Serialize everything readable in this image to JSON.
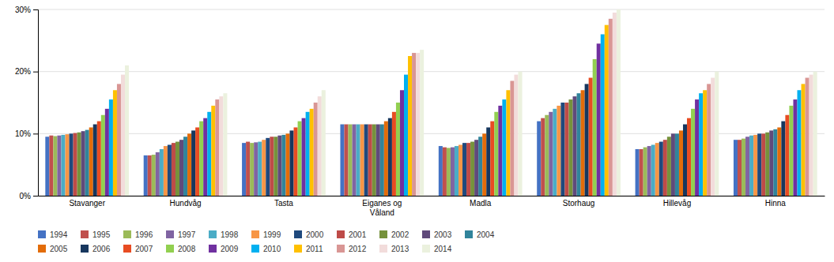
{
  "chart_data": {
    "type": "bar",
    "categories": [
      "Stavanger",
      "Hundvåg",
      "Tasta",
      "Eiganes og\nVåland",
      "Madla",
      "Storhaug",
      "Hillevåg",
      "Hinna"
    ],
    "series": [
      {
        "name": "1994",
        "color": "#4472C4",
        "values": [
          9.5,
          6.5,
          8.5,
          11.5,
          8.0,
          12.0,
          7.5,
          9.0
        ]
      },
      {
        "name": "1995",
        "color": "#C0504D",
        "values": [
          9.7,
          6.5,
          8.7,
          11.5,
          7.8,
          12.5,
          7.5,
          9.0
        ]
      },
      {
        "name": "1996",
        "color": "#9BBB59",
        "values": [
          9.6,
          6.6,
          8.5,
          11.5,
          7.7,
          13.0,
          7.8,
          9.2
        ]
      },
      {
        "name": "1997",
        "color": "#8064A2",
        "values": [
          9.7,
          7.0,
          8.6,
          11.5,
          7.8,
          13.5,
          8.0,
          9.5
        ]
      },
      {
        "name": "1998",
        "color": "#4BACC6",
        "values": [
          9.8,
          7.5,
          8.7,
          11.5,
          8.0,
          14.0,
          8.2,
          9.7
        ]
      },
      {
        "name": "1999",
        "color": "#F79646",
        "values": [
          9.9,
          8.0,
          9.0,
          11.5,
          8.2,
          14.5,
          8.5,
          9.8
        ]
      },
      {
        "name": "2000",
        "color": "#1F497D",
        "values": [
          10.0,
          8.2,
          9.3,
          11.5,
          8.5,
          15.0,
          8.7,
          10.0
        ]
      },
      {
        "name": "2001",
        "color": "#BE4B48",
        "values": [
          10.1,
          8.5,
          9.5,
          11.5,
          8.5,
          15.0,
          9.0,
          10.0
        ]
      },
      {
        "name": "2002",
        "color": "#76923C",
        "values": [
          10.2,
          8.7,
          9.5,
          11.5,
          8.7,
          15.5,
          9.5,
          10.2
        ]
      },
      {
        "name": "2003",
        "color": "#604A7B",
        "values": [
          10.4,
          9.0,
          9.7,
          11.5,
          9.0,
          16.0,
          10.0,
          10.5
        ]
      },
      {
        "name": "2004",
        "color": "#31849B",
        "values": [
          10.6,
          9.5,
          9.8,
          11.5,
          9.5,
          16.5,
          10.0,
          10.7
        ]
      },
      {
        "name": "2005",
        "color": "#E36C09",
        "values": [
          11.0,
          10.0,
          10.0,
          12.0,
          10.0,
          17.0,
          10.5,
          11.0
        ]
      },
      {
        "name": "2006",
        "color": "#17375E",
        "values": [
          11.5,
          10.5,
          10.5,
          12.5,
          11.0,
          18.0,
          11.5,
          12.0
        ]
      },
      {
        "name": "2007",
        "color": "#E84C22",
        "values": [
          12.0,
          11.0,
          11.0,
          13.5,
          12.0,
          19.0,
          12.5,
          13.0
        ]
      },
      {
        "name": "2008",
        "color": "#92D050",
        "values": [
          13.0,
          12.0,
          12.0,
          15.0,
          13.5,
          22.0,
          14.0,
          14.5
        ]
      },
      {
        "name": "2009",
        "color": "#7030A0",
        "values": [
          14.0,
          12.5,
          12.5,
          17.0,
          14.5,
          24.5,
          15.5,
          15.5
        ]
      },
      {
        "name": "2010",
        "color": "#00B0F0",
        "values": [
          15.5,
          13.5,
          13.5,
          19.5,
          15.5,
          26.0,
          16.5,
          17.0
        ]
      },
      {
        "name": "2011",
        "color": "#FFC000",
        "values": [
          17.0,
          14.5,
          14.0,
          22.5,
          17.0,
          27.5,
          17.0,
          18.0
        ]
      },
      {
        "name": "2012",
        "color": "#D99694",
        "values": [
          18.0,
          15.5,
          15.0,
          23.0,
          18.5,
          28.5,
          18.0,
          19.0
        ]
      },
      {
        "name": "2013",
        "color": "#F2DCDB",
        "values": [
          19.5,
          16.0,
          16.0,
          23.0,
          19.5,
          29.5,
          19.0,
          19.5
        ]
      },
      {
        "name": "2014",
        "color": "#EBF1DE",
        "values": [
          21.0,
          16.5,
          17.0,
          23.5,
          20.0,
          30.0,
          20.0,
          20.0
        ]
      }
    ],
    "ylim": [
      0,
      30
    ],
    "yticks": [
      {
        "value": 0,
        "label": "0%"
      },
      {
        "value": 10,
        "label": "10%"
      },
      {
        "value": 20,
        "label": "20%"
      },
      {
        "value": 30,
        "label": "30%"
      }
    ],
    "grid": true,
    "legend": "bottom"
  }
}
